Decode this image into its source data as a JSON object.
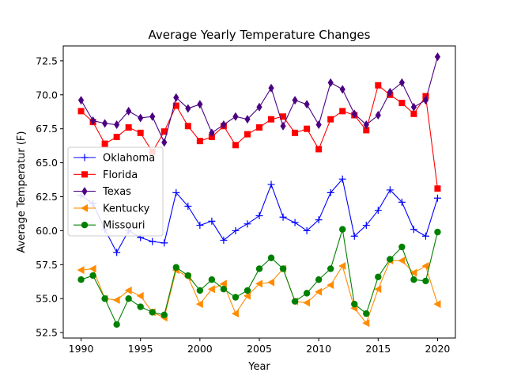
{
  "chart_data": {
    "type": "line",
    "title": "Average Yearly Temperature Changes",
    "xlabel": "Year",
    "ylabel": "Average Temperatur (F)",
    "xlim": [
      1988.5,
      2021.5
    ],
    "ylim": [
      52.1,
      73.6
    ],
    "xticks": [
      1990,
      1995,
      2000,
      2005,
      2010,
      2015,
      2020
    ],
    "yticks": [
      52.5,
      55.0,
      57.5,
      60.0,
      62.5,
      65.0,
      67.5,
      70.0,
      72.5
    ],
    "grid": false,
    "legend_position": "center-left",
    "x": [
      1990,
      1991,
      1992,
      1993,
      1994,
      1995,
      1996,
      1997,
      1998,
      1999,
      2000,
      2001,
      2002,
      2003,
      2004,
      2005,
      2006,
      2007,
      2008,
      2009,
      2010,
      2011,
      2012,
      2013,
      2014,
      2015,
      2016,
      2017,
      2018,
      2019,
      2020
    ],
    "series": [
      {
        "name": "Oklahoma",
        "color": "#0000ff",
        "marker": "plus",
        "values": [
          62.6,
          62.0,
          60.1,
          58.4,
          60.0,
          59.5,
          59.2,
          59.1,
          62.8,
          61.8,
          60.4,
          60.7,
          59.3,
          60.0,
          60.5,
          61.1,
          63.4,
          61.0,
          60.6,
          60.0,
          60.8,
          62.8,
          63.8,
          59.6,
          60.4,
          61.5,
          63.0,
          62.1,
          60.1,
          59.6,
          62.4
        ]
      },
      {
        "name": "Florida",
        "color": "#ff0000",
        "marker": "square",
        "values": [
          68.8,
          68.0,
          66.4,
          66.9,
          67.6,
          67.2,
          65.8,
          67.3,
          69.2,
          67.7,
          66.6,
          66.9,
          67.7,
          66.3,
          67.1,
          67.6,
          68.2,
          68.4,
          67.2,
          67.5,
          66.0,
          68.2,
          68.8,
          68.5,
          67.4,
          70.7,
          70.0,
          69.4,
          68.6,
          69.9,
          63.1
        ]
      },
      {
        "name": "Texas",
        "color": "#4b0082",
        "marker": "diamond",
        "values": [
          69.6,
          68.1,
          67.9,
          67.8,
          68.8,
          68.3,
          68.4,
          66.5,
          69.8,
          69.0,
          69.3,
          67.2,
          67.8,
          68.4,
          68.2,
          69.1,
          70.5,
          67.7,
          69.6,
          69.3,
          67.8,
          70.9,
          70.4,
          68.6,
          67.8,
          68.5,
          70.2,
          70.9,
          69.1,
          69.6,
          72.8
        ]
      },
      {
        "name": "Kentucky",
        "color": "#ff8c00",
        "marker": "triangle-left",
        "values": [
          57.1,
          57.2,
          55.0,
          54.9,
          55.6,
          55.2,
          54.0,
          53.6,
          57.1,
          56.6,
          54.6,
          55.7,
          56.1,
          53.9,
          55.2,
          56.1,
          56.2,
          57.2,
          54.8,
          54.7,
          55.5,
          56.0,
          57.4,
          54.3,
          53.2,
          55.7,
          57.8,
          57.8,
          56.9,
          57.4,
          54.6
        ]
      },
      {
        "name": "Missouri",
        "color": "#008000",
        "marker": "circle",
        "values": [
          56.4,
          56.7,
          55.0,
          53.1,
          55.0,
          54.4,
          54.0,
          53.8,
          57.3,
          56.7,
          55.6,
          56.4,
          55.7,
          55.1,
          55.6,
          57.2,
          58.0,
          57.2,
          54.8,
          55.4,
          56.4,
          57.2,
          60.1,
          54.6,
          53.9,
          56.6,
          57.9,
          58.8,
          56.4,
          56.3,
          59.9
        ]
      }
    ]
  }
}
